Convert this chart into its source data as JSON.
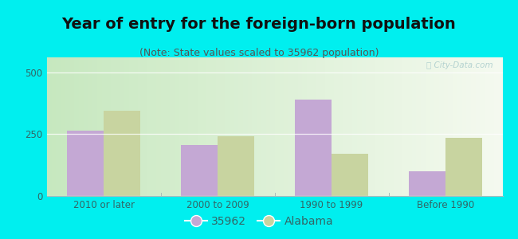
{
  "title": "Year of entry for the foreign-born population",
  "subtitle": "(Note: State values scaled to 35962 population)",
  "categories": [
    "2010 or later",
    "2000 to 2009",
    "1990 to 1999",
    "Before 1990"
  ],
  "values_35962": [
    265,
    205,
    390,
    100
  ],
  "values_alabama": [
    345,
    240,
    170,
    235
  ],
  "color_35962": "#c4a8d4",
  "color_alabama": "#c8d4a0",
  "background_outer": "#00efef",
  "background_inner_left": "#c8e8c0",
  "background_inner_right": "#f5f8f0",
  "ylim": [
    0,
    560
  ],
  "yticks": [
    0,
    250,
    500
  ],
  "bar_width": 0.32,
  "legend_label_35962": "35962",
  "legend_label_alabama": "Alabama",
  "title_fontsize": 14,
  "subtitle_fontsize": 9,
  "tick_fontsize": 8.5,
  "legend_fontsize": 10,
  "title_color": "#111111",
  "subtitle_color": "#555555",
  "tick_color": "#336666",
  "watermark_color": "#aacccc"
}
